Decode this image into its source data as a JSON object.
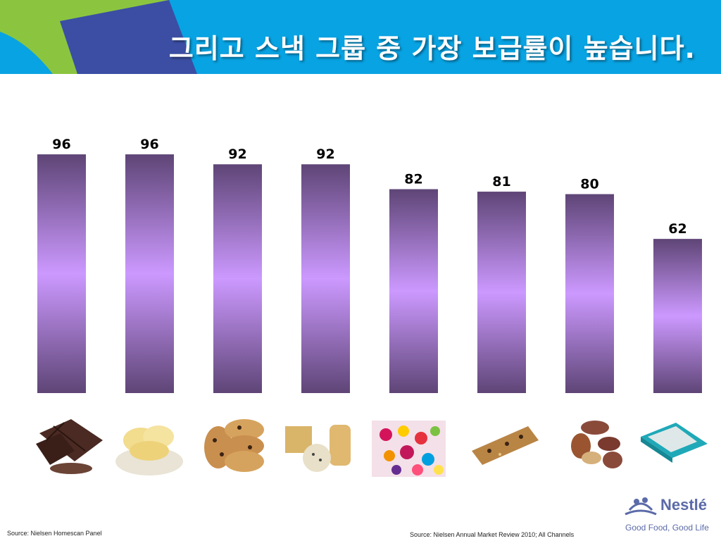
{
  "title": "그리고 스낵 그룹 중 가장 보급률이 높습니다.",
  "chart_data": {
    "type": "bar",
    "categories": [
      "",
      "",
      "",
      "",
      "",
      "",
      "",
      ""
    ],
    "values": [
      96,
      96,
      92,
      92,
      82,
      81,
      80,
      62
    ],
    "title": "",
    "xlabel": "",
    "ylabel": "",
    "ylim": [
      0,
      100
    ],
    "grid": false,
    "legend": "none",
    "bar_color_dark": "#5e4576",
    "bar_color_light": "#cc99ff"
  },
  "snack_icons": [
    "chocolate-icon",
    "chips-icon",
    "cookies-icon",
    "crackers-icon",
    "candy-icon",
    "granola-bar-icon",
    "nuts-icon",
    "gum-icon"
  ],
  "sources": {
    "left": "Source:  Nielsen Homescan Panel",
    "right": "Source:  Nielsen Annual Market Review 2010;  All Channels"
  },
  "brand": {
    "name": "Nestlé",
    "tagline": "Good Food, Good Life"
  }
}
